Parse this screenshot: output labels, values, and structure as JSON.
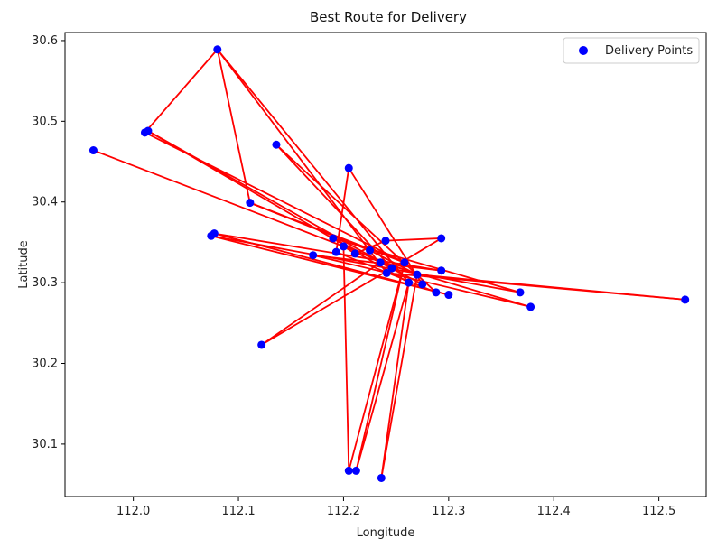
{
  "chart_data": {
    "type": "scatter",
    "title": "Best Route for Delivery",
    "xlabel": "Longitude",
    "ylabel": "Latitude",
    "xlim": [
      111.935,
      112.545
    ],
    "ylim": [
      30.035,
      30.61
    ],
    "xticks": [
      112.0,
      112.1,
      112.2,
      112.3,
      112.4,
      112.5
    ],
    "xtick_labels": [
      "112.0",
      "112.1",
      "112.2",
      "112.3",
      "112.4",
      "112.5"
    ],
    "yticks": [
      30.1,
      30.2,
      30.3,
      30.4,
      30.5,
      30.6
    ],
    "ytick_labels": [
      "30.1",
      "30.2",
      "30.3",
      "30.4",
      "30.5",
      "30.6"
    ],
    "grid": false,
    "legend": {
      "position": "top-right",
      "entries": [
        "Delivery Points"
      ]
    },
    "colors": {
      "points": "#0000ff",
      "route": "#ff0000",
      "axes": "#000000"
    },
    "series": [
      {
        "name": "Delivery Points",
        "points": [
          [
            112.08,
            30.589
          ],
          [
            112.011,
            30.486
          ],
          [
            112.014,
            30.488
          ],
          [
            111.962,
            30.464
          ],
          [
            112.136,
            30.471
          ],
          [
            112.111,
            30.399
          ],
          [
            112.205,
            30.442
          ],
          [
            112.074,
            30.358
          ],
          [
            112.077,
            30.361
          ],
          [
            112.19,
            30.355
          ],
          [
            112.2,
            30.345
          ],
          [
            112.193,
            30.338
          ],
          [
            112.211,
            30.336
          ],
          [
            112.171,
            30.334
          ],
          [
            112.225,
            30.34
          ],
          [
            112.24,
            30.352
          ],
          [
            112.293,
            30.355
          ],
          [
            112.235,
            30.325
          ],
          [
            112.246,
            30.318
          ],
          [
            112.258,
            30.325
          ],
          [
            112.27,
            30.31
          ],
          [
            112.241,
            30.312
          ],
          [
            112.262,
            30.3
          ],
          [
            112.275,
            30.298
          ],
          [
            112.288,
            30.288
          ],
          [
            112.3,
            30.285
          ],
          [
            112.293,
            30.315
          ],
          [
            112.368,
            30.288
          ],
          [
            112.378,
            30.27
          ],
          [
            112.525,
            30.279
          ],
          [
            112.122,
            30.223
          ],
          [
            112.205,
            30.067
          ],
          [
            112.212,
            30.067
          ],
          [
            112.236,
            30.058
          ]
        ]
      }
    ],
    "route": [
      [
        111.962,
        30.464
      ],
      [
        112.27,
        30.31
      ],
      [
        112.525,
        30.279
      ],
      [
        112.241,
        30.312
      ],
      [
        112.08,
        30.589
      ],
      [
        112.111,
        30.399
      ],
      [
        112.258,
        30.325
      ],
      [
        112.011,
        30.486
      ],
      [
        112.08,
        30.589
      ],
      [
        112.262,
        30.3
      ],
      [
        112.014,
        30.488
      ],
      [
        112.246,
        30.318
      ],
      [
        112.136,
        30.471
      ],
      [
        112.288,
        30.288
      ],
      [
        112.193,
        30.338
      ],
      [
        112.205,
        30.442
      ],
      [
        112.275,
        30.298
      ],
      [
        112.19,
        30.355
      ],
      [
        112.368,
        30.288
      ],
      [
        112.074,
        30.358
      ],
      [
        112.3,
        30.285
      ],
      [
        112.077,
        30.361
      ],
      [
        112.293,
        30.315
      ],
      [
        112.171,
        30.334
      ],
      [
        112.378,
        30.27
      ],
      [
        112.235,
        30.325
      ],
      [
        112.122,
        30.223
      ],
      [
        112.246,
        30.318
      ],
      [
        112.293,
        30.355
      ],
      [
        112.24,
        30.352
      ],
      [
        112.211,
        30.336
      ],
      [
        112.2,
        30.345
      ],
      [
        112.205,
        30.067
      ],
      [
        112.258,
        30.325
      ],
      [
        112.212,
        30.067
      ],
      [
        112.262,
        30.3
      ],
      [
        112.236,
        30.058
      ],
      [
        112.27,
        30.31
      ],
      [
        112.225,
        30.34
      ],
      [
        112.111,
        30.399
      ],
      [
        112.258,
        30.325
      ]
    ]
  }
}
